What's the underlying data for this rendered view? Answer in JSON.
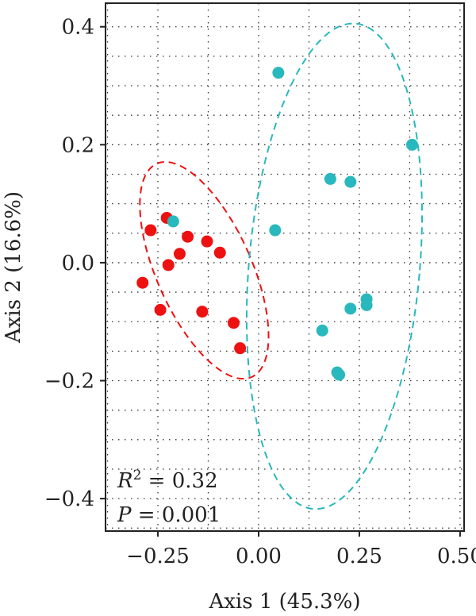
{
  "chart_data": {
    "type": "scatter",
    "xlabel": "Axis 1 (45.3%)",
    "ylabel": "Axis 2 (16.6%)",
    "xlim": [
      -0.38,
      0.51
    ],
    "ylim": [
      -0.455,
      0.44
    ],
    "x_ticks": [
      -0.25,
      0.0,
      0.25,
      0.5
    ],
    "x_tick_labels": [
      "−0.25",
      "0.00",
      "0.25",
      "0.50"
    ],
    "y_ticks": [
      0.4,
      0.2,
      0.0,
      -0.2,
      -0.4
    ],
    "y_tick_labels": [
      "0.4",
      "0.2",
      "0.0",
      "−0.2",
      "−0.4"
    ],
    "grid": "on (dotted)",
    "legend": "none",
    "annotations": {
      "r2_label": "R",
      "r2_sup": "2",
      "r2_value": " = 0.32",
      "p_label": "P",
      "p_value": " = 0.001"
    },
    "series": [
      {
        "color": "#ee1111",
        "points": [
          [
            -0.228,
            0.076
          ],
          [
            -0.268,
            0.055
          ],
          [
            -0.176,
            0.044
          ],
          [
            -0.128,
            0.036
          ],
          [
            -0.096,
            0.017
          ],
          [
            -0.196,
            0.015
          ],
          [
            -0.224,
            -0.004
          ],
          [
            -0.288,
            -0.034
          ],
          [
            -0.244,
            -0.08
          ],
          [
            -0.14,
            -0.083
          ],
          [
            -0.062,
            -0.102
          ],
          [
            -0.046,
            -0.145
          ]
        ],
        "ellipse": {
          "cx": -0.135,
          "cy": -0.013,
          "rx": 0.118,
          "ry": 0.198,
          "rotation_deg": -24
        }
      },
      {
        "color": "#29b8bd",
        "points": [
          [
            0.049,
            0.322
          ],
          [
            0.381,
            0.2
          ],
          [
            0.178,
            0.142
          ],
          [
            0.228,
            0.137
          ],
          [
            -0.212,
            0.07
          ],
          [
            0.041,
            0.055
          ],
          [
            0.268,
            -0.062
          ],
          [
            0.268,
            -0.072
          ],
          [
            0.228,
            -0.078
          ],
          [
            0.158,
            -0.115
          ],
          [
            0.195,
            -0.186
          ],
          [
            0.2,
            -0.19
          ]
        ],
        "ellipse": {
          "cx": 0.188,
          "cy": -0.006,
          "rx": 0.212,
          "ry": 0.413,
          "rotation_deg": 5
        }
      }
    ]
  }
}
